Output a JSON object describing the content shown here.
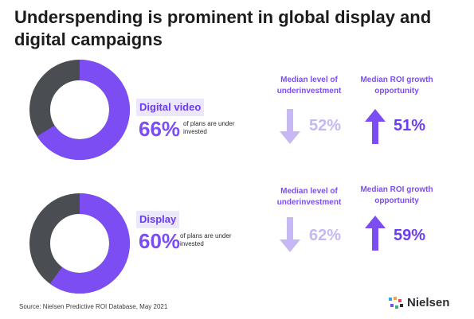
{
  "title": "Underspending is prominent in global display and digital campaigns",
  "colors": {
    "accent": "#7b4df3",
    "dark_ring": "#4a4d52",
    "light_arrow": "#c7b8f5",
    "tag_bg": "#ece7fb"
  },
  "chart_data": [
    {
      "type": "pie",
      "label": "Digital video",
      "percent_label": "66%",
      "note": "of plans are under invested",
      "values": [
        66,
        34
      ],
      "metrics": [
        {
          "heading": "Median level of underinvestment",
          "value": "52%",
          "arrow": "down",
          "icon": "down-arrow-icon"
        },
        {
          "heading": "Median ROI growth opportunity",
          "value": "51%",
          "arrow": "up",
          "icon": "up-arrow-icon"
        }
      ]
    },
    {
      "type": "pie",
      "label": "Display",
      "percent_label": "60%",
      "note": "of plans are under invested",
      "values": [
        60,
        40
      ],
      "metrics": [
        {
          "heading": "Median level of underinvestment",
          "value": "62%",
          "arrow": "down",
          "icon": "down-arrow-icon"
        },
        {
          "heading": "Median ROI growth opportunity",
          "value": "59%",
          "arrow": "up",
          "icon": "up-arrow-icon"
        }
      ]
    }
  ],
  "source": "Source: Nielsen Predictive ROI Database, May 2021",
  "logo": {
    "text": "Nielsen",
    "icon": "nielsen-logo-icon"
  }
}
